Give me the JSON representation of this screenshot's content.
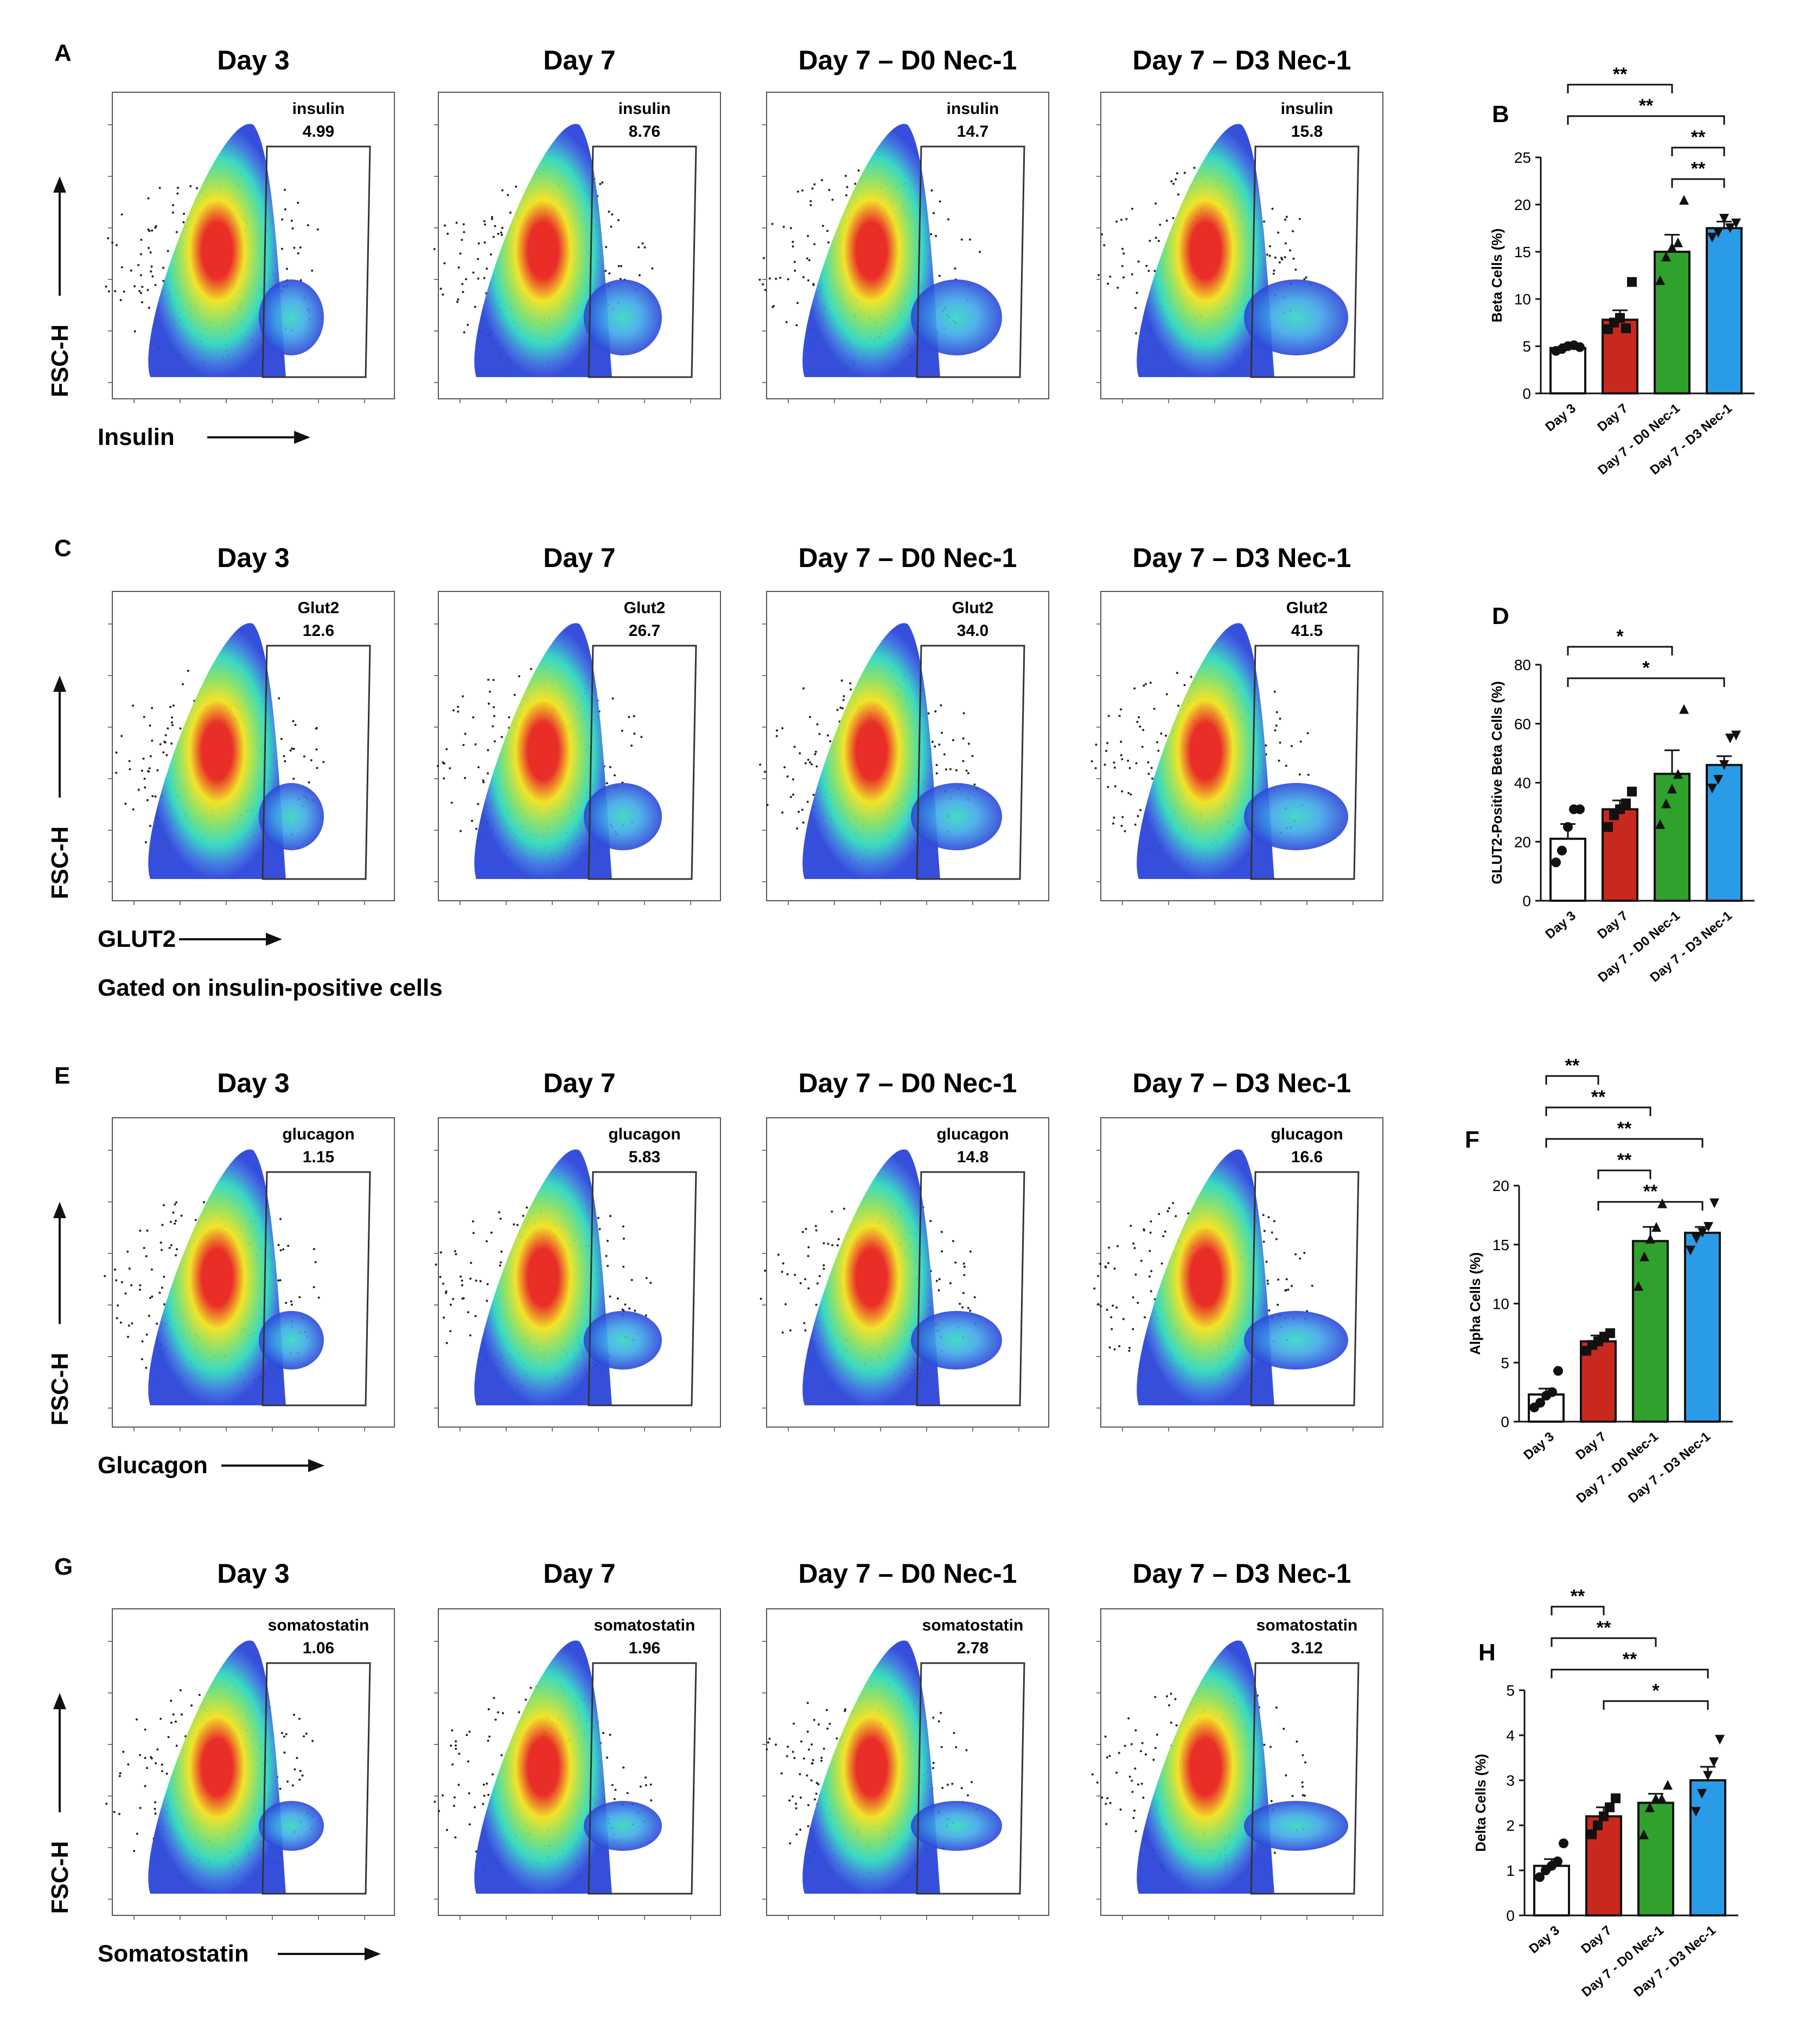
{
  "colors": {
    "day3": "#ffffff",
    "day7": "#c8281e",
    "d0": "#2fa12c",
    "d3": "#2a9be6",
    "ink": "#111111",
    "gate": "#333333",
    "density_low": "#2c46d8",
    "density_mid": "#2fd7c0",
    "density_high": "#f1e21e",
    "density_peak": "#e8231d"
  },
  "conditions": [
    "Day 3",
    "Day 7",
    "Day 7 – D0 Nec-1",
    "Day 7 – D3 Nec-1"
  ],
  "bar_categories": [
    "Day 3",
    "Day 7",
    "Day 7 - D0 Nec-1",
    "Day 7 - D3 Nec-1"
  ],
  "flow_rows": [
    {
      "letter": "A",
      "marker": "insulin",
      "ylabel": "FSC-H",
      "xlabel": "Insulin",
      "note": "",
      "values": [
        "4.99",
        "8.76",
        "14.7",
        "15.8"
      ]
    },
    {
      "letter": "C",
      "marker": "Glut2",
      "ylabel": "FSC-H",
      "xlabel": "GLUT2",
      "note": "Gated on insulin-positive cells",
      "values": [
        "12.6",
        "26.7",
        "34.0",
        "41.5"
      ]
    },
    {
      "letter": "E",
      "marker": "glucagon",
      "ylabel": "FSC-H",
      "xlabel": "Glucagon",
      "note": "",
      "values": [
        "1.15",
        "5.83",
        "14.8",
        "16.6"
      ]
    },
    {
      "letter": "G",
      "marker": "somatostatin",
      "ylabel": "FSC-H",
      "xlabel": "Somatostatin",
      "note": "",
      "values": [
        "1.06",
        "1.96",
        "2.78",
        "3.12"
      ]
    }
  ],
  "chart_data": [
    {
      "panel": "B",
      "type": "bar",
      "ylabel": "Beta Cells (%)",
      "categories": [
        "Day 3",
        "Day 7",
        "Day 7 - D0 Nec-1",
        "Day 7 - D3 Nec-1"
      ],
      "values": [
        4.8,
        7.8,
        15.0,
        17.5
      ],
      "errors": [
        0.4,
        1.0,
        1.8,
        0.7
      ],
      "ylim": [
        0,
        25
      ],
      "yticks": [
        0,
        5,
        10,
        15,
        20,
        25
      ],
      "markers": [
        "circle",
        "square",
        "triangle",
        "triangle-down"
      ],
      "points": [
        [
          4.5,
          4.7,
          5.0,
          5.1,
          4.9
        ],
        [
          6.8,
          7.5,
          8.0,
          6.9,
          11.8
        ],
        [
          12.0,
          14.5,
          15.5,
          16.0,
          20.5
        ],
        [
          16.5,
          17.0,
          18.5,
          17.5,
          18.0
        ]
      ],
      "brackets": [
        {
          "from": 0,
          "to": 2,
          "label": "**"
        },
        {
          "from": 0,
          "to": 3,
          "label": "**"
        },
        {
          "from": 2,
          "to": 3,
          "label": "**"
        },
        {
          "from": 2,
          "to": 3,
          "label": "**"
        }
      ]
    },
    {
      "panel": "D",
      "type": "bar",
      "ylabel": "GLUT2-Positive Beta Cells (%)",
      "categories": [
        "Day 3",
        "Day 7",
        "Day 7 - D0 Nec-1",
        "Day 7 - D3 Nec-1"
      ],
      "values": [
        21,
        31,
        43,
        46
      ],
      "errors": [
        5,
        3,
        8,
        3
      ],
      "ylim": [
        0,
        80
      ],
      "yticks": [
        0,
        20,
        40,
        60,
        80
      ],
      "markers": [
        "circle",
        "square",
        "triangle",
        "triangle-down"
      ],
      "points": [
        [
          13,
          17,
          25,
          31,
          31
        ],
        [
          25,
          29,
          31,
          33,
          37
        ],
        [
          26,
          33,
          38,
          43,
          65
        ],
        [
          38,
          41,
          46,
          55,
          56
        ]
      ],
      "brackets": [
        {
          "from": 0,
          "to": 2,
          "label": "*"
        },
        {
          "from": 0,
          "to": 3,
          "label": "*"
        }
      ]
    },
    {
      "panel": "F",
      "type": "bar",
      "ylabel": "Alpha Cells (%)",
      "categories": [
        "Day 3",
        "Day 7",
        "Day 7 - D0 Nec-1",
        "Day 7 - D3 Nec-1"
      ],
      "values": [
        2.3,
        6.8,
        15.3,
        16.0
      ],
      "errors": [
        0.5,
        0.5,
        1.2,
        0.5
      ],
      "ylim": [
        0,
        20
      ],
      "yticks": [
        0,
        5,
        10,
        15,
        20
      ],
      "markers": [
        "circle",
        "square",
        "triangle",
        "triangle-down"
      ],
      "points": [
        [
          1.2,
          1.6,
          2.2,
          2.5,
          4.3
        ],
        [
          6.0,
          6.5,
          6.8,
          7.2,
          7.5
        ],
        [
          11.5,
          14.0,
          15.5,
          16.5,
          18.5
        ],
        [
          14.5,
          15.5,
          16.0,
          16.5,
          18.5
        ]
      ],
      "brackets": [
        {
          "from": 0,
          "to": 1,
          "label": "**"
        },
        {
          "from": 0,
          "to": 2,
          "label": "**"
        },
        {
          "from": 0,
          "to": 3,
          "label": "**"
        },
        {
          "from": 1,
          "to": 2,
          "label": "**"
        },
        {
          "from": 1,
          "to": 3,
          "label": "**"
        }
      ]
    },
    {
      "panel": "H",
      "type": "bar",
      "ylabel": "Delta Cells (%)",
      "categories": [
        "Day 3",
        "Day 7",
        "Day 7 - D0 Nec-1",
        "Day 7 - D3 Nec-1"
      ],
      "values": [
        1.1,
        2.2,
        2.5,
        3.0
      ],
      "errors": [
        0.15,
        0.2,
        0.2,
        0.3
      ],
      "ylim": [
        0,
        5
      ],
      "yticks": [
        0,
        1,
        2,
        3,
        4,
        5
      ],
      "markers": [
        "circle",
        "square",
        "triangle",
        "triangle-down"
      ],
      "points": [
        [
          0.85,
          1.0,
          1.1,
          1.2,
          1.6
        ],
        [
          1.8,
          2.0,
          2.2,
          2.4,
          2.6
        ],
        [
          1.8,
          2.4,
          2.6,
          2.6,
          2.9
        ],
        [
          2.3,
          2.7,
          3.1,
          3.4,
          3.9
        ]
      ],
      "brackets": [
        {
          "from": 0,
          "to": 1,
          "label": "**"
        },
        {
          "from": 0,
          "to": 2,
          "label": "**"
        },
        {
          "from": 0,
          "to": 3,
          "label": "**"
        },
        {
          "from": 1,
          "to": 3,
          "label": "*"
        }
      ]
    }
  ]
}
